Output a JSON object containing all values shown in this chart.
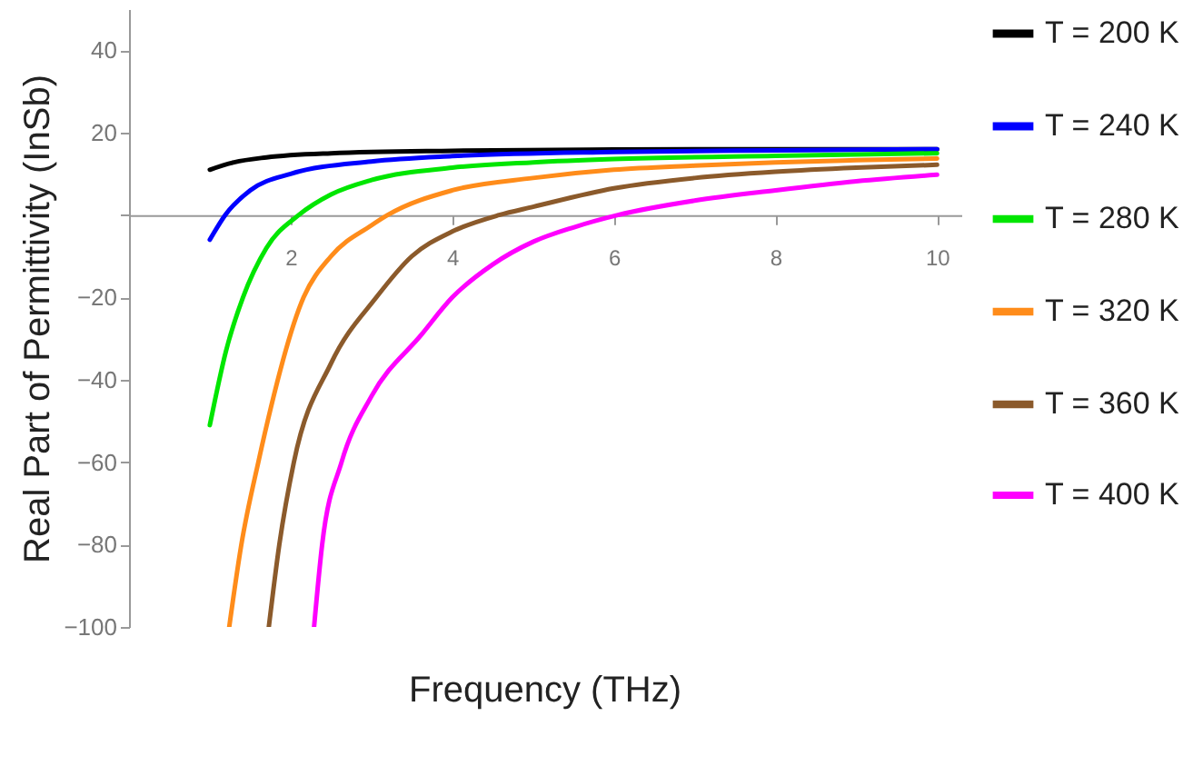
{
  "chart_data": {
    "type": "line",
    "xlabel": "Frequency (THz)",
    "ylabel": "Real Part of Permittivity (InSb)",
    "xlim": [
      0,
      10.3
    ],
    "xticks": [
      2,
      4,
      6,
      8,
      10
    ],
    "ylim": [
      -100,
      50
    ],
    "yticks": [
      40,
      20,
      {
        "value": 0,
        "label": null
      },
      -20,
      -40,
      -60,
      -80,
      -100
    ],
    "grid": false,
    "legend": "right",
    "marker": "none",
    "line_style": "solid",
    "series": [
      {
        "name": "T = 200 K",
        "color": "#000000",
        "x": [
          1,
          1.3,
          1.7,
          2.5,
          4,
          6,
          8,
          10
        ],
        "values": [
          11,
          12.8,
          14,
          15,
          15.6,
          15.9,
          16,
          16
        ]
      },
      {
        "name": "T = 240 K",
        "color": "#0000ff",
        "x": [
          1,
          1.19,
          1.5,
          2,
          3,
          4,
          6,
          8,
          10
        ],
        "values": [
          -6,
          0,
          6,
          10,
          13,
          14.3,
          15.3,
          15.7,
          16
        ]
      },
      {
        "name": "T = 280 K",
        "color": "#00e600",
        "x": [
          1,
          1.2,
          1.41,
          1.7,
          2.1,
          2.5,
          3,
          4,
          5,
          6,
          8,
          10
        ],
        "values": [
          -51,
          -33,
          -20,
          -8,
          0,
          5,
          8.5,
          11.5,
          12.8,
          13.6,
          14.4,
          15
        ]
      },
      {
        "name": "T = 320 K",
        "color": "#ff8c1a",
        "x": [
          1.24,
          1.39,
          1.6,
          2.16,
          2.5,
          3,
          3.2,
          4,
          5,
          6,
          7,
          8,
          9,
          10
        ],
        "values": [
          -100,
          -80,
          -60,
          -20,
          -10,
          -2.5,
          0,
          6,
          9,
          11,
          12,
          12.8,
          13.3,
          13.7
        ]
      },
      {
        "name": "T = 360 K",
        "color": "#8b5a2b",
        "x": [
          1.73,
          1.86,
          2.04,
          2.5,
          3.06,
          3.5,
          4,
          4.58,
          5,
          6,
          7,
          8,
          9,
          10
        ],
        "values": [
          -100,
          -80,
          -60,
          -36,
          -20,
          -10,
          -4,
          0,
          2,
          6.5,
          9,
          10.5,
          11.5,
          12.2
        ]
      },
      {
        "name": "T = 400 K",
        "color": "#ff00ff",
        "x": [
          2.29,
          2.39,
          2.63,
          3,
          3.62,
          4,
          4.5,
          5,
          5.5,
          6.05,
          7,
          8,
          9,
          10
        ],
        "values": [
          -100,
          -80,
          -60,
          -44,
          -29,
          -20,
          -12,
          -6.5,
          -3,
          0,
          3.5,
          6,
          8.2,
          9.8
        ]
      }
    ]
  }
}
